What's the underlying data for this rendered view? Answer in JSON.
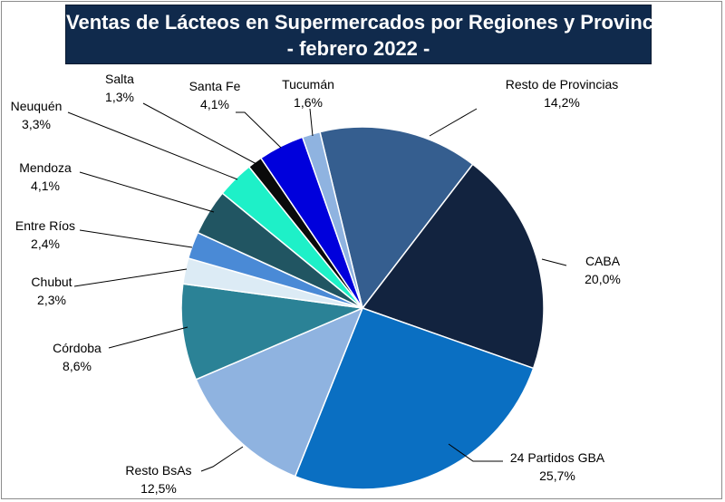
{
  "chart_data": {
    "type": "pie",
    "title_line1": "Ventas de Lácteos en Supermercados por Regiones y Provincias",
    "title_line2": "- febrero 2022 -",
    "slices": [
      {
        "name": "Resto de Provincias",
        "value": 14.2,
        "label": "14,2%",
        "color": "#355e8f"
      },
      {
        "name": "CABA",
        "value": 20.0,
        "label": "20,0%",
        "color": "#12233f"
      },
      {
        "name": "24 Partidos GBA",
        "value": 25.7,
        "label": "25,7%",
        "color": "#0a6fc2"
      },
      {
        "name": "Resto BsAs",
        "value": 12.5,
        "label": "12,5%",
        "color": "#8fb3e0"
      },
      {
        "name": "Córdoba",
        "value": 8.6,
        "label": "8,6%",
        "color": "#2b8296"
      },
      {
        "name": "Chubut",
        "value": 2.3,
        "label": "2,3%",
        "color": "#dcebf5"
      },
      {
        "name": "Entre Ríos",
        "value": 2.4,
        "label": "2,4%",
        "color": "#4a8ad6"
      },
      {
        "name": "Mendoza",
        "value": 4.1,
        "label": "4,1%",
        "color": "#215562"
      },
      {
        "name": "Neuquén",
        "value": 3.3,
        "label": "3,3%",
        "color": "#1ef0c8"
      },
      {
        "name": "Salta",
        "value": 1.3,
        "label": "1,3%",
        "color": "#0a0a0a"
      },
      {
        "name": "Santa Fe",
        "value": 4.1,
        "label": "4,1%",
        "color": "#0000dc"
      },
      {
        "name": "Tucumán",
        "value": 1.6,
        "label": "1,6%",
        "color": "#8fb3e0"
      }
    ],
    "legend": "none"
  }
}
